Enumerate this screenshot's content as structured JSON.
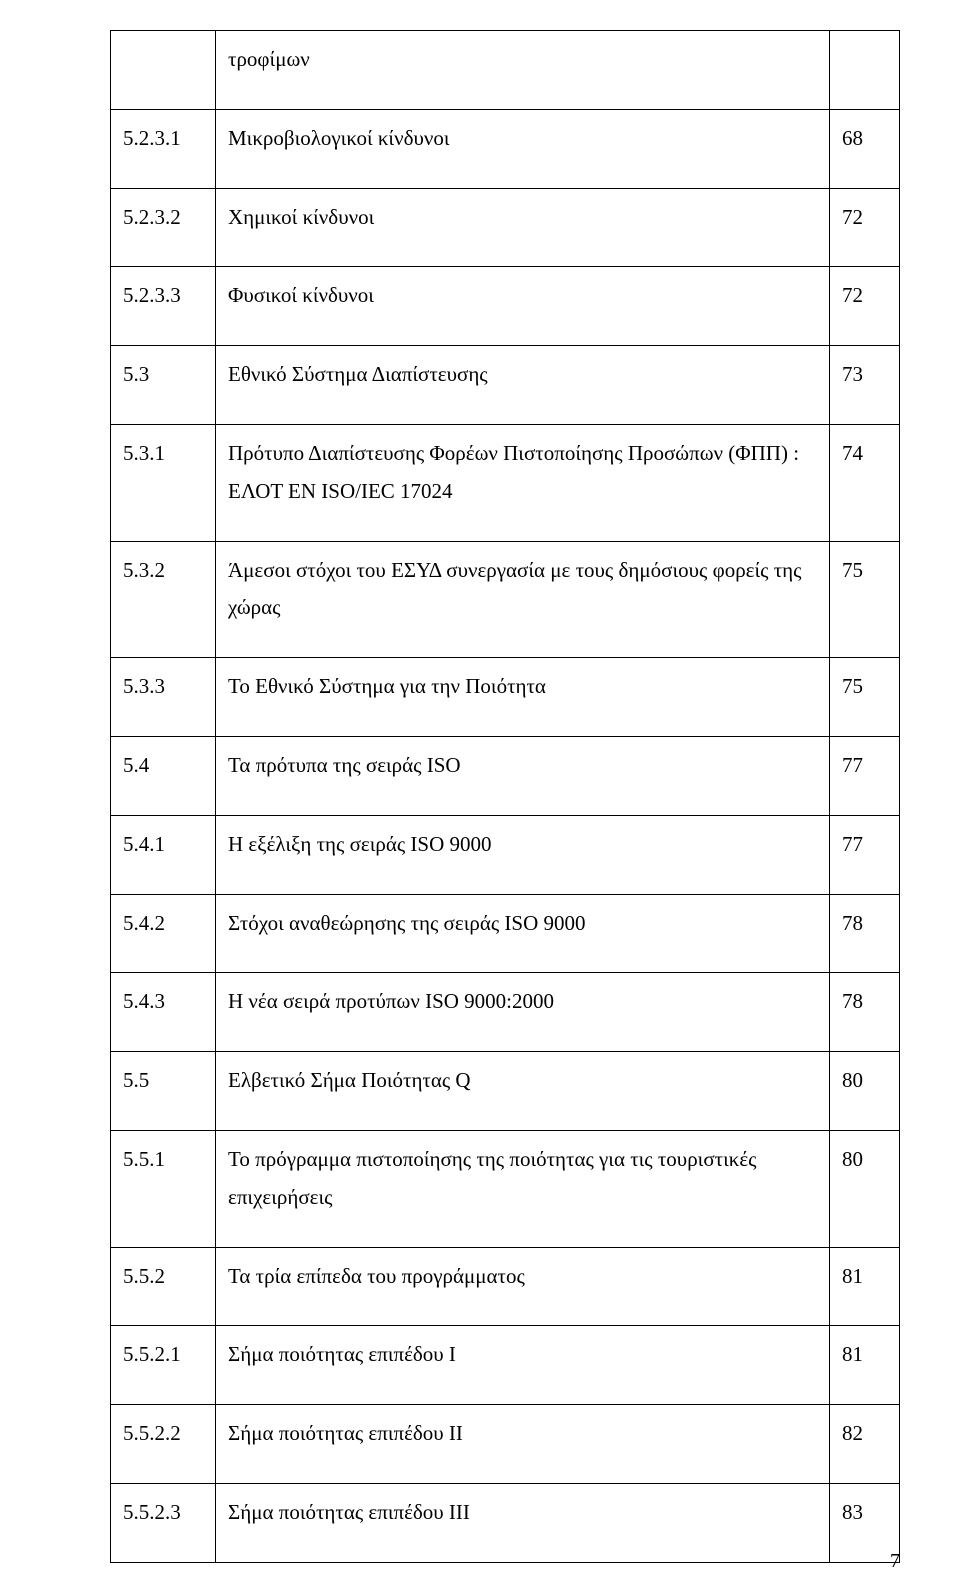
{
  "text_color": "#000000",
  "border_color": "#000000",
  "background_color": "#ffffff",
  "font_size_pt": 16,
  "page_number": "7",
  "rows": [
    {
      "c0": "",
      "c1": "τροφίμων",
      "c2": ""
    },
    {
      "c0": "5.2.3.1",
      "c1": "Μικροβιολογικοί κίνδυνοι",
      "c2": "68"
    },
    {
      "c0": "5.2.3.2",
      "c1": "Χημικοί κίνδυνοι",
      "c2": "72"
    },
    {
      "c0": "5.2.3.3",
      "c1": "Φυσικοί κίνδυνοι",
      "c2": "72"
    },
    {
      "c0": "5.3",
      "c1": "Εθνικό Σύστημα Διαπίστευσης",
      "c2": "73"
    },
    {
      "c0": "5.3.1",
      "c1": "Πρότυπο Διαπίστευσης Φορέων Πιστοποίησης Προσώπων (ΦΠΠ) : ΕΛΟΤ ΕΝ ISO/IEC 17024",
      "c2": "74"
    },
    {
      "c0": "5.3.2",
      "c1": "Άμεσοι στόχοι του ΕΣΥΔ συνεργασία με τους δημόσιους φορείς της χώρας",
      "c2": "75"
    },
    {
      "c0": "5.3.3",
      "c1": "Το Εθνικό Σύστημα για την Ποιότητα",
      "c2": "75"
    },
    {
      "c0": "5.4",
      "c1": "Τα πρότυπα της σειράς ISO",
      "c2": "77"
    },
    {
      "c0": "5.4.1",
      "c1": "Η εξέλιξη της σειράς ISO 9000",
      "c2": "77"
    },
    {
      "c0": "5.4.2",
      "c1": "Στόχοι αναθεώρησης της σειράς ISO 9000",
      "c2": "78"
    },
    {
      "c0": "5.4.3",
      "c1": "Η νέα σειρά προτύπων ISO 9000:2000",
      "c2": "78"
    },
    {
      "c0": "5.5",
      "c1": "Ελβετικό Σήμα Ποιότητας  Q",
      "c2": "80"
    },
    {
      "c0": "5.5.1",
      "c1": "Το πρόγραμμα πιστοποίησης της ποιότητας για τις τουριστικές επιχειρήσεις",
      "c2": "80"
    },
    {
      "c0": "5.5.2",
      "c1": "Τα τρία επίπεδα του προγράμματος",
      "c2": "81"
    },
    {
      "c0": "5.5.2.1",
      "c1": "Σήμα ποιότητας επιπέδου Ι",
      "c2": "81"
    },
    {
      "c0": "5.5.2.2",
      "c1": "Σήμα ποιότητας επιπέδου ΙΙ",
      "c2": "82"
    },
    {
      "c0": "5.5.2.3",
      "c1": "Σήμα ποιότητας επιπέδου ΙΙΙ",
      "c2": "83"
    }
  ]
}
